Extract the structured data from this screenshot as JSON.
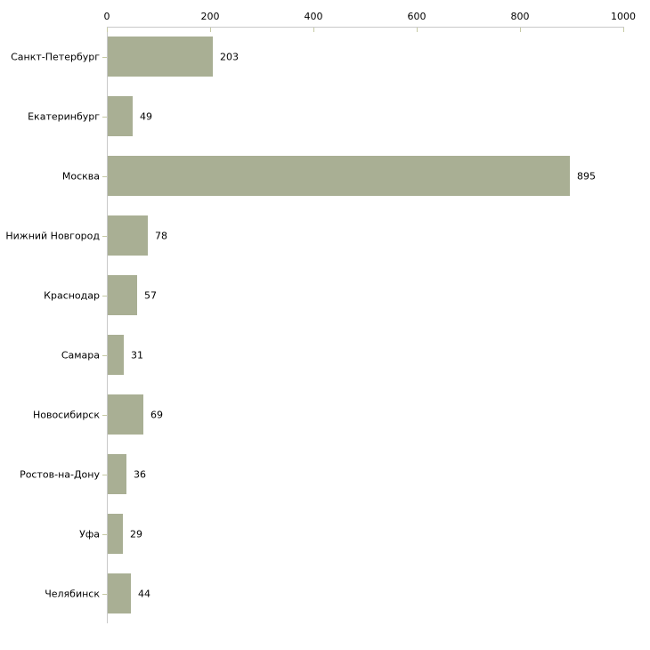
{
  "chart_data": {
    "type": "bar",
    "orientation": "horizontal",
    "title": "",
    "xlabel": "",
    "ylabel": "",
    "categories": [
      "Санкт-Петербург",
      "Екатеринбург",
      "Москва",
      "Нижний Новгород",
      "Краснодар",
      "Самара",
      "Новосибирск",
      "Ростов-на-Дону",
      "Уфа",
      "Челябинск"
    ],
    "values": [
      203,
      49,
      895,
      78,
      57,
      31,
      69,
      36,
      29,
      44
    ],
    "value_labels": [
      "203",
      "49",
      "895",
      "78",
      "57",
      "31",
      "69",
      "36",
      "29",
      "44"
    ],
    "xlim": [
      0,
      1000
    ],
    "x_ticks": [
      0,
      200,
      400,
      600,
      800,
      1000
    ],
    "x_tick_labels": [
      "0",
      "200",
      "400",
      "600",
      "800",
      "1000"
    ],
    "grid": false,
    "legend": false,
    "axis_position": "top",
    "colors": {
      "bar_fill": "#a9af94",
      "axis_line": "#c9c9c9",
      "tick_mark": "#c6caa4",
      "text": "#000000",
      "background": "#ffffff"
    }
  }
}
